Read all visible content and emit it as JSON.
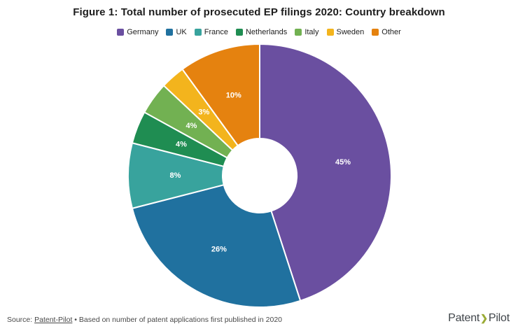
{
  "title": "Figure 1: Total number of prosecuted EP filings 2020: Country breakdown",
  "chart_data": {
    "type": "pie",
    "variant": "donut",
    "title": "Figure 1: Total number of prosecuted EP filings 2020: Country breakdown",
    "unit": "%",
    "direction": "clockwise",
    "start_angle_deg": 0,
    "inner_radius_ratio": 0.28,
    "legend_position": "top",
    "categories": [
      "Germany",
      "UK",
      "France",
      "Netherlands",
      "Italy",
      "Sweden",
      "Other"
    ],
    "values": [
      45,
      26,
      8,
      4,
      4,
      3,
      10
    ],
    "slice_labels": [
      "45%",
      "26%",
      "8%",
      "4%",
      "4%",
      "3%",
      "10%"
    ],
    "colors": [
      "#6a4fa0",
      "#20719f",
      "#38a39d",
      "#1f8d52",
      "#72b152",
      "#f3b41d",
      "#e5820f"
    ]
  },
  "footer": {
    "source_prefix": "Source: ",
    "source_link": "Patent-Pilot",
    "source_suffix": " • Based on number of patent applications first published in 2020",
    "logo": {
      "part1": "Patent",
      "separator": "❯",
      "part2": "Pilot",
      "separator_color": "#9aab35"
    }
  }
}
